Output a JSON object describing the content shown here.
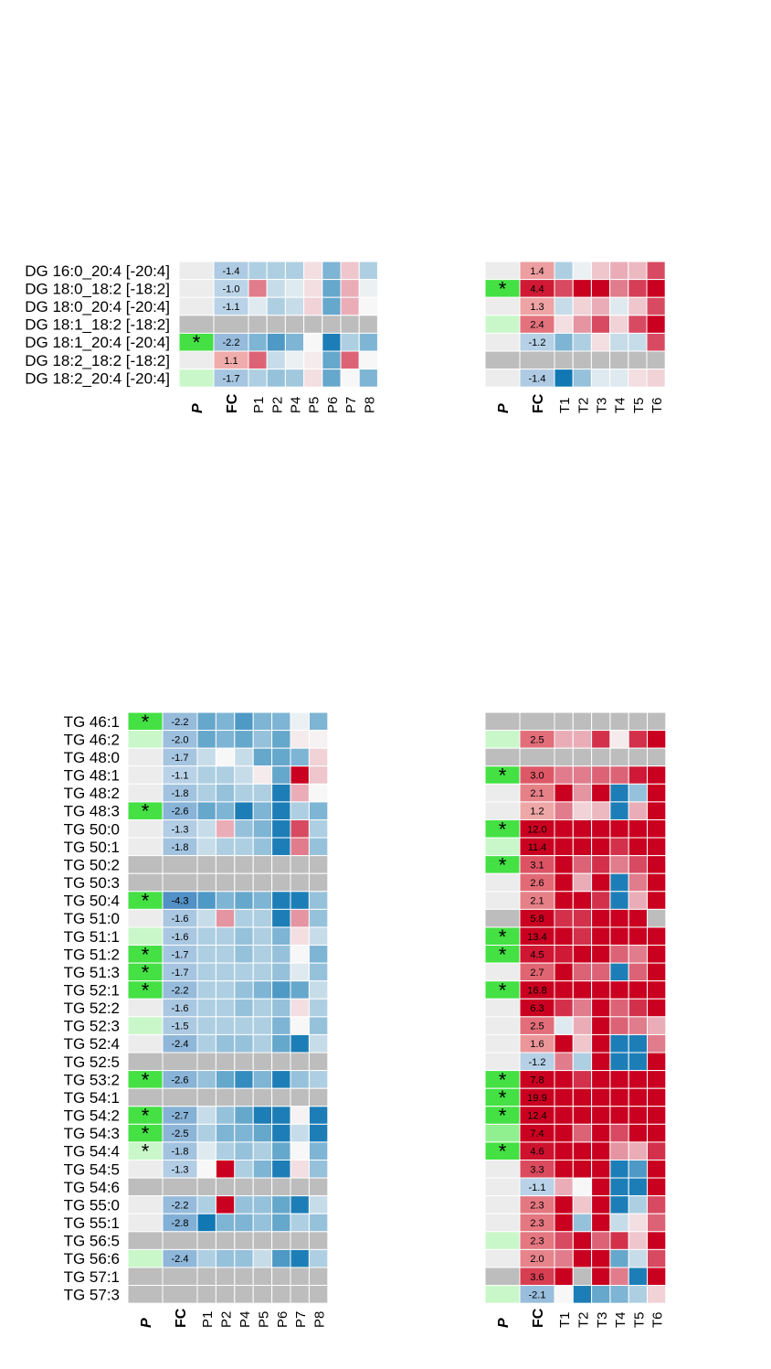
{
  "chart_data": [
    {
      "type": "heatmap",
      "panel": "DG-P",
      "rows": [
        "DG 16:0_20:4 [-20:4]",
        "DG 18:0_18:2 [-18:2]",
        "DG 18:0_20:4 [-20:4]",
        "DG 18:1_18:2 [-18:2]",
        "DG 18:1_20:4 [-20:4]",
        "DG 18:2_18:2 [-18:2]",
        "DG 18:2_20:4 [-20:4]"
      ],
      "columns": [
        "P",
        "FC",
        "P1",
        "P2",
        "P4",
        "P5",
        "P6",
        "P7",
        "P8"
      ],
      "p_marks": [
        "",
        "",
        "",
        "",
        "*",
        "",
        ""
      ],
      "p_shade": [
        0,
        0,
        0,
        -1,
        3,
        0,
        1
      ],
      "fc_labels": [
        "-1.4",
        "-1.0",
        "-1.1",
        "",
        "-2.2",
        "1.1",
        "-1.7"
      ],
      "fc_values": [
        -1.4,
        -1.0,
        -1.1,
        null,
        -2.2,
        1.1,
        -1.7
      ],
      "cells": [
        [
          -0.3,
          -0.3,
          -0.3,
          0.1,
          -0.5,
          0.2,
          -0.3
        ],
        [
          0.5,
          -0.2,
          -0.1,
          0.1,
          -0.6,
          0.3,
          -0.05
        ],
        [
          -0.1,
          -0.3,
          -0.2,
          0.15,
          -0.6,
          0.3,
          0.0
        ],
        [
          null,
          null,
          null,
          null,
          null,
          null,
          null
        ],
        [
          -0.5,
          -0.7,
          -0.5,
          0.0,
          -0.9,
          -0.3,
          -0.5
        ],
        [
          0.6,
          -0.2,
          -0.05,
          0.05,
          -0.6,
          0.6,
          0.0
        ],
        [
          -0.3,
          -0.4,
          -0.35,
          0.1,
          -0.6,
          0.0,
          -0.5
        ]
      ]
    },
    {
      "type": "heatmap",
      "panel": "DG-T",
      "columns": [
        "P",
        "FC",
        "T1",
        "T2",
        "T3",
        "T4",
        "T5",
        "T6"
      ],
      "p_marks": [
        "",
        "*",
        "",
        "",
        "",
        "",
        ""
      ],
      "p_shade": [
        0,
        3,
        0,
        1,
        0,
        -1,
        0
      ],
      "fc_labels": [
        "1.4",
        "4.4",
        "1.3",
        "2.4",
        "-1.2",
        "",
        "-1.4"
      ],
      "fc_values": [
        1.4,
        4.4,
        1.3,
        2.4,
        -1.2,
        null,
        -1.4
      ],
      "cells": [
        [
          -0.3,
          -0.05,
          0.2,
          0.3,
          0.25,
          0.7
        ],
        [
          0.7,
          1,
          1,
          0.5,
          0.75,
          1
        ],
        [
          -0.2,
          0.15,
          0.3,
          -0.1,
          0.2,
          0.7
        ],
        [
          0.1,
          0.4,
          0.7,
          0.15,
          0.7,
          1
        ],
        [
          -0.5,
          -0.3,
          0.1,
          -0.2,
          -0.2,
          0.7
        ],
        [
          null,
          null,
          null,
          null,
          null,
          null
        ],
        [
          -0.95,
          -0.4,
          -0.1,
          -0.1,
          0.1,
          0.15
        ]
      ]
    },
    {
      "type": "heatmap",
      "panel": "TG-P",
      "rows": [
        "TG 46:1",
        "TG 46:2",
        "TG 48:0",
        "TG 48:1",
        "TG 48:2",
        "TG 48:3",
        "TG 50:0",
        "TG 50:1",
        "TG 50:2",
        "TG 50:3",
        "TG 50:4",
        "TG 51:0",
        "TG 51:1",
        "TG 51:2",
        "TG 51:3",
        "TG 52:1",
        "TG 52:2",
        "TG 52:3",
        "TG 52:4",
        "TG 52:5",
        "TG 53:2",
        "TG 54:1",
        "TG 54:2",
        "TG 54:3",
        "TG 54:4",
        "TG 54:5",
        "TG 54:6",
        "TG 55:0",
        "TG 55:1",
        "TG 56:5",
        "TG 56:6",
        "TG 57:1",
        "TG 57:3"
      ],
      "columns": [
        "P",
        "FC",
        "P1",
        "P2",
        "P4",
        "P5",
        "P6",
        "P7",
        "P8"
      ],
      "p_marks": [
        "*",
        "",
        "",
        "",
        "",
        "*",
        "",
        "",
        "",
        "",
        "*",
        "",
        "",
        "*",
        "*",
        "*",
        "",
        "",
        "",
        "",
        "*",
        "",
        "*",
        "*",
        "*",
        "",
        "",
        "",
        "",
        "",
        "",
        "",
        ""
      ],
      "p_shade": [
        3,
        1,
        0,
        0,
        0,
        3,
        0,
        0,
        -1,
        -1,
        3,
        0,
        1,
        3,
        3,
        3,
        0,
        1,
        0,
        -1,
        3,
        -1,
        3,
        3,
        1,
        0,
        -1,
        0,
        0,
        -1,
        1,
        -1,
        -1
      ],
      "fc_labels": [
        "-2.2",
        "-2.0",
        "-1.7",
        "-1.1",
        "-1.8",
        "-2.6",
        "-1.3",
        "-1.8",
        "",
        "",
        "-4.3",
        "-1.6",
        "-1.6",
        "-1.7",
        "-1.7",
        "-2.2",
        "-1.6",
        "-1.5",
        "-2.4",
        "",
        "-2.6",
        "",
        "-2.7",
        "-2.5",
        "-1.8",
        "-1.3",
        "",
        "-2.2",
        "-2.8",
        "",
        "-2.4",
        "",
        ""
      ],
      "fc_values": [
        -2.2,
        -2.0,
        -1.7,
        -1.1,
        -1.8,
        -2.6,
        -1.3,
        -1.8,
        null,
        null,
        -4.3,
        -1.6,
        -1.6,
        -1.7,
        -1.7,
        -2.2,
        -1.6,
        -1.5,
        -2.4,
        null,
        -2.6,
        null,
        -2.7,
        -2.5,
        -1.8,
        -1.3,
        null,
        -2.2,
        -2.8,
        null,
        -2.4,
        null,
        null
      ],
      "cells": [
        [
          -0.6,
          -0.5,
          -0.7,
          -0.5,
          -0.5,
          -0.05,
          -0.5
        ],
        [
          -0.6,
          -0.5,
          -0.6,
          -0.4,
          -0.6,
          0.05,
          0.02
        ],
        [
          -0.2,
          0.0,
          -0.2,
          -0.6,
          -0.6,
          -0.5,
          0.15
        ],
        [
          -0.3,
          -0.3,
          -0.2,
          0.05,
          -0.6,
          1,
          0.2
        ],
        [
          -0.3,
          -0.4,
          -0.3,
          -0.3,
          -0.9,
          0.3,
          0.0
        ],
        [
          -0.6,
          -0.5,
          -0.9,
          -0.5,
          -0.9,
          -0.3,
          -0.5
        ],
        [
          -0.2,
          0.3,
          -0.4,
          -0.5,
          -0.9,
          0.7,
          -0.3
        ],
        [
          -0.2,
          -0.3,
          -0.3,
          -0.4,
          -0.9,
          0.5,
          -0.4
        ],
        [
          null,
          null,
          null,
          null,
          null,
          null,
          null
        ],
        [
          null,
          null,
          null,
          null,
          null,
          null,
          null
        ],
        [
          -0.7,
          -0.5,
          -0.6,
          -0.5,
          -0.9,
          -0.9,
          -0.4
        ],
        [
          -0.2,
          0.4,
          -0.3,
          -0.3,
          -0.9,
          0.4,
          -0.4
        ],
        [
          -0.3,
          -0.3,
          -0.4,
          -0.3,
          -0.5,
          0.1,
          -0.2
        ],
        [
          -0.3,
          -0.3,
          -0.4,
          -0.3,
          -0.4,
          0.0,
          -0.5
        ],
        [
          -0.3,
          -0.3,
          -0.3,
          -0.3,
          -0.4,
          -0.1,
          -0.4
        ],
        [
          -0.3,
          -0.3,
          -0.4,
          -0.5,
          -0.7,
          -0.6,
          -0.2
        ],
        [
          -0.3,
          -0.3,
          -0.4,
          -0.3,
          -0.4,
          0.1,
          -0.3
        ],
        [
          -0.3,
          -0.3,
          -0.3,
          -0.3,
          -0.5,
          0.0,
          -0.4
        ],
        [
          -0.3,
          -0.4,
          -0.4,
          -0.3,
          -0.6,
          -0.9,
          -0.2
        ],
        [
          null,
          null,
          null,
          null,
          null,
          null,
          null
        ],
        [
          -0.4,
          -0.6,
          -0.8,
          -0.5,
          -0.9,
          -0.4,
          -0.3
        ],
        [
          null,
          null,
          null,
          null,
          null,
          null,
          null
        ],
        [
          -0.2,
          -0.4,
          -0.6,
          -0.9,
          -0.9,
          0.02,
          -0.9
        ],
        [
          -0.3,
          -0.5,
          -0.5,
          -0.6,
          -0.9,
          -0.2,
          -0.9
        ],
        [
          -0.1,
          -0.3,
          -0.4,
          -0.3,
          -0.6,
          0.0,
          -0.5
        ],
        [
          0.0,
          1,
          -0.3,
          -0.5,
          -0.9,
          0.1,
          -0.4
        ],
        [
          null,
          null,
          null,
          null,
          null,
          null,
          null
        ],
        [
          -0.3,
          1,
          -0.4,
          -0.4,
          -0.6,
          -0.9,
          -0.2
        ],
        [
          -0.95,
          -0.5,
          -0.5,
          -0.4,
          -0.6,
          -0.3,
          -0.4
        ],
        [
          null,
          null,
          null,
          null,
          null,
          null,
          null
        ],
        [
          -0.3,
          -0.4,
          -0.4,
          -0.2,
          -0.7,
          -0.9,
          -0.3
        ],
        [
          null,
          null,
          null,
          null,
          null,
          null,
          null
        ],
        [
          null,
          null,
          null,
          null,
          null,
          null,
          null
        ]
      ]
    },
    {
      "type": "heatmap",
      "panel": "TG-T",
      "columns": [
        "P",
        "FC",
        "T1",
        "T2",
        "T3",
        "T4",
        "T5",
        "T6"
      ],
      "p_marks": [
        "",
        "",
        "",
        "*",
        "",
        "",
        "*",
        "",
        "*",
        "",
        "",
        "",
        "*",
        "*",
        "",
        "*",
        "",
        "",
        "",
        "",
        "*",
        "*",
        "*",
        "",
        "*",
        "",
        "",
        "",
        "",
        "",
        "",
        "",
        ""
      ],
      "p_shade": [
        -1,
        1,
        -1,
        3,
        0,
        0,
        3,
        1,
        3,
        0,
        0,
        -1,
        3,
        3,
        0,
        3,
        0,
        0,
        0,
        0,
        3,
        3,
        3,
        2,
        3,
        0,
        0,
        0,
        0,
        1,
        0,
        -1,
        1
      ],
      "fc_labels": [
        "",
        "2.5",
        "",
        "3.0",
        "2.1",
        "1.2",
        "12.0",
        "11.4",
        "3.1",
        "2.6",
        "2.1",
        "5.8",
        "13.4",
        "4.5",
        "2.7",
        "16.8",
        "6.3",
        "2.5",
        "1.6",
        "-1.2",
        "7.8",
        "19.9",
        "12.4",
        "7.4",
        "4.6",
        "3.3",
        "-1.1",
        "2.3",
        "2.3",
        "2.3",
        "2.0",
        "3.6",
        "-2.1"
      ],
      "fc_values": [
        null,
        2.5,
        null,
        3.0,
        2.1,
        1.2,
        12.0,
        11.4,
        3.1,
        2.6,
        2.1,
        5.8,
        13.4,
        4.5,
        2.7,
        16.8,
        6.3,
        2.5,
        1.6,
        -1.2,
        7.8,
        19.9,
        12.4,
        7.4,
        4.6,
        3.3,
        -1.1,
        2.3,
        2.3,
        2.3,
        2.0,
        3.6,
        -2.1
      ],
      "cells": [
        [
          null,
          null,
          null,
          null,
          null,
          null
        ],
        [
          0.3,
          0.3,
          0.8,
          0.05,
          0.8,
          1
        ],
        [
          null,
          null,
          null,
          null,
          null,
          null
        ],
        [
          0.5,
          0.5,
          0.6,
          0.6,
          0.9,
          1
        ],
        [
          1,
          0.4,
          1,
          -0.9,
          -0.4,
          1
        ],
        [
          0.5,
          0.15,
          0.25,
          -0.9,
          0.3,
          1
        ],
        [
          1,
          1,
          1,
          1,
          1,
          1
        ],
        [
          1,
          1,
          1,
          0.8,
          1,
          1
        ],
        [
          1,
          0.6,
          0.8,
          0.5,
          0.7,
          1
        ],
        [
          1,
          0.3,
          1,
          -0.9,
          0.5,
          1
        ],
        [
          1,
          1,
          0.8,
          -0.9,
          0.3,
          1
        ],
        [
          0.8,
          0.8,
          1,
          1,
          1,
          null
        ],
        [
          1,
          0.8,
          1,
          1,
          1,
          1
        ],
        [
          0.9,
          1,
          1,
          0.6,
          0.5,
          1
        ],
        [
          1,
          0.6,
          0.6,
          -0.9,
          0.6,
          1
        ],
        [
          1,
          1,
          1,
          1,
          1,
          1
        ],
        [
          0.8,
          0.5,
          1,
          0.6,
          0.8,
          1
        ],
        [
          -0.1,
          0.3,
          1,
          0.6,
          0.5,
          0.3
        ],
        [
          1,
          0.2,
          1,
          -0.9,
          -0.9,
          0.5
        ],
        [
          0.5,
          -0.3,
          1,
          -0.9,
          -0.9,
          1
        ],
        [
          1,
          0.8,
          1,
          1,
          1,
          1
        ],
        [
          1,
          1,
          1,
          1,
          1,
          1
        ],
        [
          1,
          1,
          1,
          1,
          1,
          1
        ],
        [
          1,
          0.6,
          1,
          0.7,
          1,
          1
        ],
        [
          1,
          1,
          1,
          0.4,
          0.3,
          0.8
        ],
        [
          1,
          1,
          1,
          -0.9,
          -0.7,
          1
        ],
        [
          0.3,
          0.0,
          1,
          -0.9,
          -0.9,
          1
        ],
        [
          1,
          0.2,
          1,
          -0.9,
          -0.3,
          0.7
        ],
        [
          1,
          -0.4,
          1,
          -0.2,
          0.1,
          0.6
        ],
        [
          0.7,
          1,
          0.6,
          0.8,
          0.2,
          1
        ],
        [
          0.5,
          1,
          1,
          -0.6,
          -0.2,
          0.7
        ],
        [
          1,
          null,
          1,
          0.5,
          -0.9,
          1
        ],
        [
          0.0,
          -0.9,
          -0.6,
          -0.5,
          -0.3,
          0.15
        ]
      ]
    }
  ]
}
